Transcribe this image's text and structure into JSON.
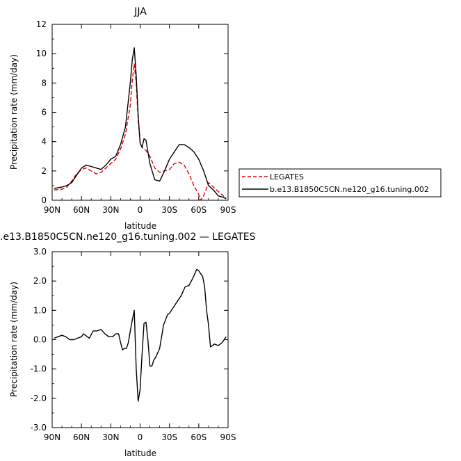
{
  "chart_data": [
    {
      "type": "line",
      "title": "JJA",
      "xlabel": "latitude",
      "ylabel": "Precipitation rate  (mm/day)",
      "xlim": [
        90,
        -90
      ],
      "ylim": [
        0,
        12
      ],
      "xticks": [
        90,
        60,
        30,
        0,
        -30,
        -60,
        -90
      ],
      "xtick_labels": [
        "90N",
        "60N",
        "30N",
        "0",
        "30S",
        "60S",
        "90S"
      ],
      "yticks": [
        0,
        2,
        4,
        6,
        8,
        10,
        12
      ],
      "ytick_labels": [
        "0",
        "2",
        "4",
        "6",
        "8",
        "10",
        "12"
      ],
      "legend_placement": "right",
      "series": [
        {
          "name": "LEGATES",
          "color": "#e00000",
          "dash": "dashed",
          "x": [
            88,
            80,
            75,
            70,
            65,
            60,
            55,
            50,
            45,
            40,
            35,
            30,
            25,
            20,
            15,
            10,
            8,
            6,
            4,
            2,
            0,
            -2,
            -4,
            -6,
            -10,
            -15,
            -20,
            -25,
            -30,
            -35,
            -40,
            -45,
            -50,
            -55,
            -60,
            -62,
            -65,
            -70,
            -75,
            -80,
            -85,
            -88
          ],
          "y": [
            0.7,
            0.75,
            0.9,
            1.3,
            1.8,
            2.1,
            2.2,
            2.0,
            1.8,
            1.9,
            2.2,
            2.5,
            2.8,
            3.5,
            4.5,
            6.5,
            8.2,
            9.3,
            8.0,
            5.5,
            4.0,
            3.6,
            3.5,
            3.4,
            3.0,
            2.2,
            1.9,
            2.0,
            2.1,
            2.5,
            2.6,
            2.4,
            1.8,
            1.0,
            0.4,
            0.0,
            0.3,
            1.2,
            0.9,
            0.6,
            0.3,
            0.15
          ]
        },
        {
          "name": "b.e13.B1850C5CN.ne120_g16.tuning.002",
          "color": "#000000",
          "dash": "solid",
          "x": [
            88,
            80,
            75,
            70,
            65,
            60,
            55,
            50,
            45,
            40,
            35,
            30,
            25,
            20,
            15,
            10,
            8,
            6,
            4,
            2,
            0,
            -2,
            -4,
            -6,
            -10,
            -15,
            -20,
            -25,
            -30,
            -35,
            -40,
            -45,
            -50,
            -55,
            -60,
            -65,
            -70,
            -75,
            -80,
            -85,
            -88
          ],
          "y": [
            0.8,
            0.9,
            1.0,
            1.2,
            1.7,
            2.2,
            2.4,
            2.3,
            2.2,
            2.1,
            2.4,
            2.8,
            3.0,
            3.8,
            5.0,
            8.0,
            9.6,
            10.4,
            8.5,
            5.8,
            3.9,
            3.6,
            4.2,
            4.1,
            2.5,
            1.4,
            1.3,
            2.0,
            2.8,
            3.3,
            3.8,
            3.8,
            3.6,
            3.3,
            2.8,
            2.0,
            1.0,
            0.7,
            0.3,
            0.2,
            0.1
          ]
        }
      ]
    },
    {
      "type": "line",
      "title": ".e13.B1850C5CN.ne120_g16.tuning.002 — LEGATES",
      "xlabel": "latitude",
      "ylabel": "Precipitation rate  (mm/day)",
      "xlim": [
        90,
        -90
      ],
      "ylim": [
        -3.0,
        3.0
      ],
      "xticks": [
        90,
        60,
        30,
        0,
        -30,
        -60,
        -90
      ],
      "xtick_labels": [
        "90N",
        "60N",
        "30N",
        "0",
        "30S",
        "60S",
        "90S"
      ],
      "yticks": [
        -3,
        -2,
        -1,
        0,
        1,
        2,
        3
      ],
      "ytick_labels": [
        "-3.0",
        "-2.0",
        "-1.0",
        "0.0",
        "1.0",
        "2.0",
        "3.0"
      ],
      "series": [
        {
          "color": "#000000",
          "dash": "solid",
          "x": [
            88,
            84,
            80,
            76,
            72,
            68,
            64,
            60,
            58,
            56,
            52,
            48,
            44,
            40,
            36,
            32,
            28,
            25,
            22,
            20,
            18,
            16,
            14,
            12,
            9,
            6,
            4,
            2,
            0,
            -2,
            -4,
            -6,
            -8,
            -10,
            -12,
            -14,
            -16,
            -20,
            -24,
            -28,
            -30,
            -34,
            -38,
            -42,
            -46,
            -50,
            -54,
            -58,
            -60,
            -64,
            -66,
            -68,
            -70,
            -72,
            -76,
            -80,
            -84,
            -88
          ],
          "y": [
            0.05,
            0.1,
            0.15,
            0.1,
            0.0,
            0.0,
            0.05,
            0.1,
            0.2,
            0.15,
            0.05,
            0.3,
            0.3,
            0.35,
            0.2,
            0.1,
            0.1,
            0.2,
            0.2,
            -0.1,
            -0.35,
            -0.3,
            -0.3,
            -0.1,
            0.5,
            1.0,
            -1.0,
            -2.1,
            -1.7,
            -0.5,
            0.55,
            0.6,
            0.0,
            -0.9,
            -0.9,
            -0.7,
            -0.6,
            -0.3,
            0.5,
            0.85,
            0.9,
            1.1,
            1.3,
            1.5,
            1.8,
            1.85,
            2.1,
            2.4,
            2.35,
            2.15,
            1.8,
            1.0,
            0.5,
            -0.25,
            -0.15,
            -0.2,
            -0.1,
            0.1
          ]
        }
      ]
    }
  ]
}
